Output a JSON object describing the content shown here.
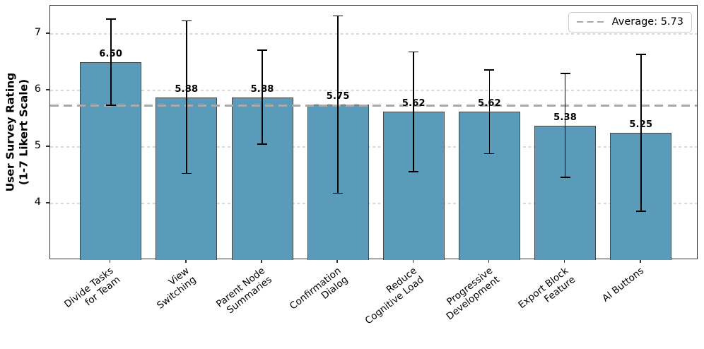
{
  "chart_data": {
    "type": "bar",
    "title": "",
    "ylabel": "User Survey Rating\n(1-7 Likert Scale)",
    "xlabel": "",
    "categories": [
      "Divide Tasks\nfor Team",
      "View\nSwitching",
      "Parent Node\nSummaries",
      "Confirmation\nDialog",
      "Reduce\nCognitive Load",
      "Progressive\nDevelopment",
      "Export Block\nFeature",
      "AI Buttons"
    ],
    "values": [
      6.5,
      5.88,
      5.88,
      5.75,
      5.62,
      5.62,
      5.38,
      5.25
    ],
    "error_bars": [
      0.76,
      1.35,
      0.83,
      1.57,
      1.06,
      0.74,
      0.92,
      1.39
    ],
    "value_labels": [
      "6.50",
      "5.88",
      "5.88",
      "5.75",
      "5.62",
      "5.62",
      "5.38",
      "5.25"
    ],
    "yticks": [
      4,
      5,
      6,
      7
    ],
    "ytick_labels": [
      "4",
      "5",
      "6",
      "7"
    ],
    "ylim": [
      3.0,
      7.5
    ],
    "average": 5.73,
    "legend": {
      "label": "Average: 5.73",
      "position": "upper right",
      "line_style": "dashed"
    },
    "grid": {
      "axis": "y",
      "style": "dashed",
      "on": true
    },
    "colors": {
      "bar_fill": "#5a9bba",
      "bar_edge": "#474747",
      "error_bar": "#000000",
      "average_line": "#a9a9a9",
      "gridline": "#d9d9d9",
      "spine": "#333333",
      "text": "#000000",
      "background": "#ffffff",
      "legend_border": "#cccccc"
    }
  }
}
